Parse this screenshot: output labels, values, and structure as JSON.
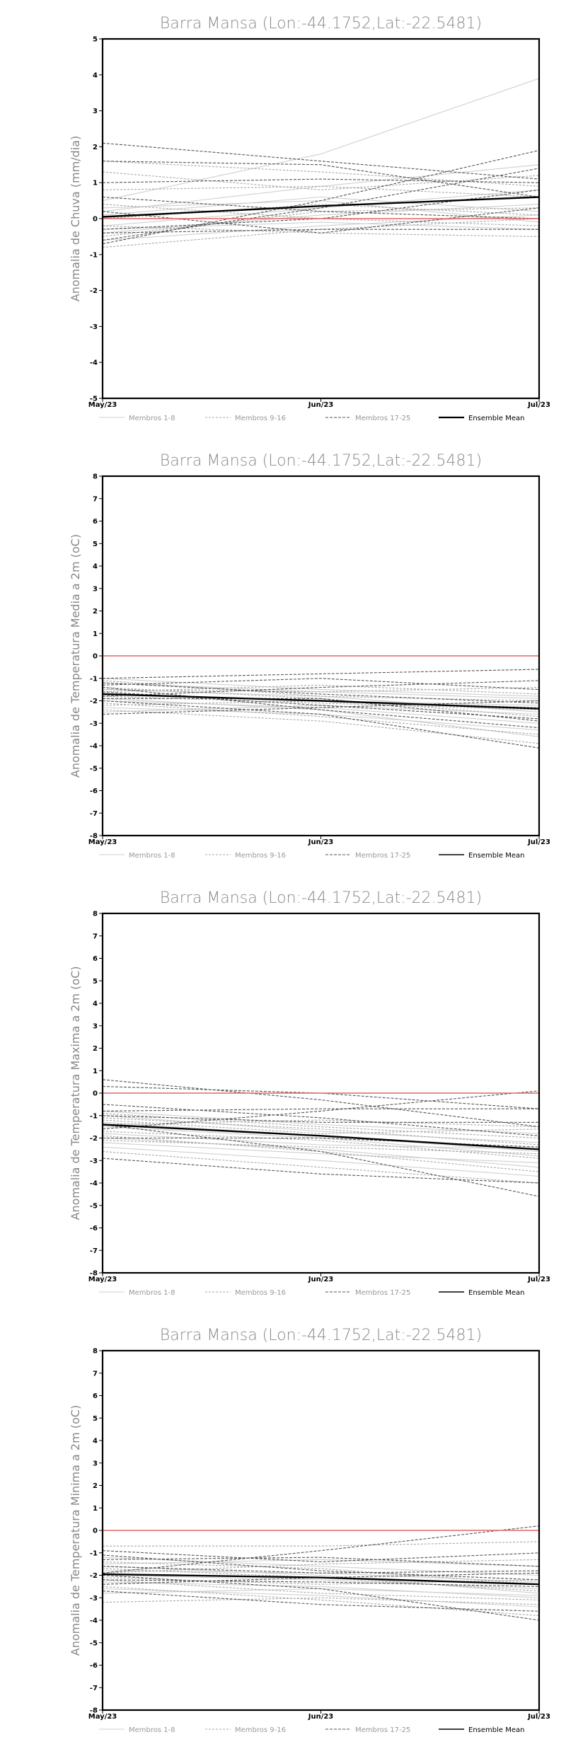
{
  "chart_data": [
    {
      "type": "line",
      "title": "Barra Mansa (Lon:-44.1752,Lat:-22.5481)",
      "ylabel": "Anomalia de Chuva (mm/dia)",
      "xlabel": "",
      "categories": [
        "May/23",
        "Jun/23",
        "Jul/23"
      ],
      "ylim": [
        -5,
        5
      ],
      "yticks": [
        -5,
        -4,
        -3,
        -2,
        -1,
        0,
        1,
        2,
        3,
        4,
        5
      ],
      "reference_line": {
        "y": 0,
        "color": "#e06666"
      },
      "legend": [
        "Membros 1-8",
        "Membros 9-16",
        "Membros 17-25",
        "Ensemble Mean"
      ],
      "series": [
        {
          "group": "g1",
          "values": [
            0.5,
            1.8,
            3.9
          ]
        },
        {
          "group": "g1",
          "values": [
            0.2,
            0.9,
            1.5
          ]
        },
        {
          "group": "g1",
          "values": [
            -0.2,
            0.3,
            0.8
          ]
        },
        {
          "group": "g1",
          "values": [
            -0.4,
            0.1,
            0.4
          ]
        },
        {
          "group": "g1",
          "values": [
            0.1,
            0.6,
            0.2
          ]
        },
        {
          "group": "g1",
          "values": [
            -0.6,
            -0.2,
            0.1
          ]
        },
        {
          "group": "g1",
          "values": [
            0.3,
            0.5,
            -0.1
          ]
        },
        {
          "group": "g1",
          "values": [
            -0.3,
            -0.1,
            -0.3
          ]
        },
        {
          "group": "g2",
          "values": [
            1.6,
            1.3,
            0.9
          ]
        },
        {
          "group": "g2",
          "values": [
            0.8,
            0.9,
            0.6
          ]
        },
        {
          "group": "g2",
          "values": [
            -0.5,
            0.2,
            0.3
          ]
        },
        {
          "group": "g2",
          "values": [
            0.0,
            0.4,
            0.1
          ]
        },
        {
          "group": "g2",
          "values": [
            -0.8,
            -0.3,
            0.0
          ]
        },
        {
          "group": "g2",
          "values": [
            0.4,
            0.0,
            -0.2
          ]
        },
        {
          "group": "g2",
          "values": [
            -0.2,
            -0.4,
            -0.5
          ]
        },
        {
          "group": "g2",
          "values": [
            1.3,
            0.8,
            1.2
          ]
        },
        {
          "group": "g3",
          "values": [
            2.1,
            1.6,
            1.1
          ]
        },
        {
          "group": "g3",
          "values": [
            1.6,
            1.5,
            0.6
          ]
        },
        {
          "group": "g3",
          "values": [
            -0.7,
            0.5,
            1.9
          ]
        },
        {
          "group": "g3",
          "values": [
            -0.6,
            0.3,
            1.4
          ]
        },
        {
          "group": "g3",
          "values": [
            0.2,
            -0.4,
            0.3
          ]
        },
        {
          "group": "g3",
          "values": [
            -0.4,
            -0.3,
            -0.3
          ]
        },
        {
          "group": "g3",
          "values": [
            0.6,
            0.2,
            0.0
          ]
        },
        {
          "group": "g3",
          "values": [
            -0.3,
            0.0,
            0.8
          ]
        },
        {
          "group": "g3",
          "values": [
            1.0,
            1.1,
            1.0
          ]
        },
        {
          "group": "mean",
          "values": [
            0.05,
            0.35,
            0.6
          ]
        }
      ]
    },
    {
      "type": "line",
      "title": "Barra Mansa (Lon:-44.1752,Lat:-22.5481)",
      "ylabel": "Anomalia de Temperatura Media a 2m (oC)",
      "xlabel": "",
      "categories": [
        "May/23",
        "Jun/23",
        "Jul/23"
      ],
      "ylim": [
        -8,
        8
      ],
      "yticks": [
        -8,
        -7,
        -6,
        -5,
        -4,
        -3,
        -2,
        -1,
        0,
        1,
        2,
        3,
        4,
        5,
        6,
        7,
        8
      ],
      "reference_line": {
        "y": 0,
        "color": "#e06666"
      },
      "legend": [
        "Membros 1-8",
        "Membros 9-16",
        "Membros 17-25",
        "Ensemble Mean"
      ],
      "series": [
        {
          "group": "g1",
          "values": [
            -1.5,
            -1.8,
            -2.5
          ]
        },
        {
          "group": "g1",
          "values": [
            -2.0,
            -2.3,
            -3.0
          ]
        },
        {
          "group": "g1",
          "values": [
            -1.2,
            -1.6,
            -1.9
          ]
        },
        {
          "group": "g1",
          "values": [
            -2.3,
            -2.6,
            -3.3
          ]
        },
        {
          "group": "g1",
          "values": [
            -1.7,
            -2.0,
            -2.2
          ]
        },
        {
          "group": "g1",
          "values": [
            -1.0,
            -1.5,
            -1.8
          ]
        },
        {
          "group": "g1",
          "values": [
            -2.5,
            -2.2,
            -2.6
          ]
        },
        {
          "group": "g1",
          "values": [
            -1.9,
            -2.4,
            -3.6
          ]
        },
        {
          "group": "g2",
          "values": [
            -1.4,
            -1.9,
            -2.7
          ]
        },
        {
          "group": "g2",
          "values": [
            -2.1,
            -2.7,
            -3.5
          ]
        },
        {
          "group": "g2",
          "values": [
            -1.6,
            -1.3,
            -1.7
          ]
        },
        {
          "group": "g2",
          "values": [
            -1.8,
            -2.1,
            -2.4
          ]
        },
        {
          "group": "g2",
          "values": [
            -2.4,
            -2.9,
            -3.9
          ]
        },
        {
          "group": "g2",
          "values": [
            -1.1,
            -1.8,
            -2.0
          ]
        },
        {
          "group": "g2",
          "values": [
            -2.2,
            -2.0,
            -2.3
          ]
        },
        {
          "group": "g2",
          "values": [
            -1.5,
            -1.6,
            -1.4
          ]
        },
        {
          "group": "g3",
          "values": [
            -1.0,
            -0.8,
            -0.6
          ]
        },
        {
          "group": "g3",
          "values": [
            -1.3,
            -1.0,
            -1.5
          ]
        },
        {
          "group": "g3",
          "values": [
            -1.6,
            -2.2,
            -2.8
          ]
        },
        {
          "group": "g3",
          "values": [
            -2.0,
            -2.6,
            -4.1
          ]
        },
        {
          "group": "g3",
          "values": [
            -1.8,
            -1.4,
            -1.1
          ]
        },
        {
          "group": "g3",
          "values": [
            -2.6,
            -2.3,
            -2.0
          ]
        },
        {
          "group": "g3",
          "values": [
            -1.2,
            -1.7,
            -2.1
          ]
        },
        {
          "group": "g3",
          "values": [
            -1.9,
            -1.9,
            -2.9
          ]
        },
        {
          "group": "g3",
          "values": [
            -1.4,
            -2.4,
            -3.2
          ]
        },
        {
          "group": "mean",
          "values": [
            -1.7,
            -2.0,
            -2.35
          ]
        }
      ]
    },
    {
      "type": "line",
      "title": "Barra Mansa (Lon:-44.1752,Lat:-22.5481)",
      "ylabel": "Anomalia de Temperatura Maxima a 2m (oC)",
      "xlabel": "",
      "categories": [
        "May/23",
        "Jun/23",
        "Jul/23"
      ],
      "ylim": [
        -8,
        8
      ],
      "yticks": [
        -8,
        -7,
        -6,
        -5,
        -4,
        -3,
        -2,
        -1,
        0,
        1,
        2,
        3,
        4,
        5,
        6,
        7,
        8
      ],
      "reference_line": {
        "y": 0,
        "color": "#e06666"
      },
      "legend": [
        "Membros 1-8",
        "Membros 9-16",
        "Membros 17-25",
        "Ensemble Mean"
      ],
      "series": [
        {
          "group": "g1",
          "values": [
            -1.5,
            -2.0,
            -2.8
          ]
        },
        {
          "group": "g1",
          "values": [
            -2.0,
            -2.5,
            -3.3
          ]
        },
        {
          "group": "g1",
          "values": [
            -1.0,
            -1.7,
            -2.2
          ]
        },
        {
          "group": "g1",
          "values": [
            -2.4,
            -3.0,
            -3.7
          ]
        },
        {
          "group": "g1",
          "values": [
            -1.8,
            -2.3,
            -2.5
          ]
        },
        {
          "group": "g1",
          "values": [
            -0.8,
            -1.4,
            -1.8
          ]
        },
        {
          "group": "g1",
          "values": [
            -2.2,
            -2.7,
            -3.1
          ]
        },
        {
          "group": "g1",
          "values": [
            -1.3,
            -1.9,
            -2.6
          ]
        },
        {
          "group": "g2",
          "values": [
            -1.1,
            -1.6,
            -2.3
          ]
        },
        {
          "group": "g2",
          "values": [
            -1.9,
            -2.6,
            -3.5
          ]
        },
        {
          "group": "g2",
          "values": [
            -1.4,
            -1.2,
            -1.5
          ]
        },
        {
          "group": "g2",
          "values": [
            -2.6,
            -3.3,
            -4.0
          ]
        },
        {
          "group": "g2",
          "values": [
            -0.9,
            -1.5,
            -2.0
          ]
        },
        {
          "group": "g2",
          "values": [
            -1.7,
            -2.1,
            -2.9
          ]
        },
        {
          "group": "g2",
          "values": [
            -2.1,
            -2.4,
            -2.7
          ]
        },
        {
          "group": "g2",
          "values": [
            -1.2,
            -1.8,
            -1.6
          ]
        },
        {
          "group": "g3",
          "values": [
            0.6,
            -0.3,
            -1.5
          ]
        },
        {
          "group": "g3",
          "values": [
            0.3,
            0.0,
            -0.7
          ]
        },
        {
          "group": "g3",
          "values": [
            -2.9,
            -3.6,
            -4.0
          ]
        },
        {
          "group": "g3",
          "values": [
            -1.6,
            -0.8,
            0.1
          ]
        },
        {
          "group": "g3",
          "values": [
            -0.8,
            -0.7,
            -0.7
          ]
        },
        {
          "group": "g3",
          "values": [
            -1.4,
            -2.6,
            -4.6
          ]
        },
        {
          "group": "g3",
          "values": [
            -1.0,
            -1.3,
            -1.3
          ]
        },
        {
          "group": "g3",
          "values": [
            -2.0,
            -2.0,
            -2.4
          ]
        },
        {
          "group": "g3",
          "values": [
            -0.5,
            -1.1,
            -1.9
          ]
        },
        {
          "group": "mean",
          "values": [
            -1.4,
            -1.9,
            -2.5
          ]
        }
      ]
    },
    {
      "type": "line",
      "title": "Barra Mansa (Lon:-44.1752,Lat:-22.5481)",
      "ylabel": "Anomalia de Temperatura Minima a 2m (oC)",
      "xlabel": "",
      "categories": [
        "May/23",
        "Jun/23",
        "Jul/23"
      ],
      "ylim": [
        -8,
        8
      ],
      "yticks": [
        -8,
        -7,
        -6,
        -5,
        -4,
        -3,
        -2,
        -1,
        0,
        1,
        2,
        3,
        4,
        5,
        6,
        7,
        8
      ],
      "reference_line": {
        "y": 0,
        "color": "#e06666"
      },
      "legend": [
        "Membros 1-8",
        "Membros 9-16",
        "Membros 17-25",
        "Ensemble Mean"
      ],
      "series": [
        {
          "group": "g1",
          "values": [
            -1.8,
            -1.9,
            -2.3
          ]
        },
        {
          "group": "g1",
          "values": [
            -2.3,
            -2.5,
            -3.0
          ]
        },
        {
          "group": "g1",
          "values": [
            -1.5,
            -1.3,
            -1.6
          ]
        },
        {
          "group": "g1",
          "values": [
            -2.6,
            -2.9,
            -3.4
          ]
        },
        {
          "group": "g1",
          "values": [
            -2.0,
            -2.2,
            -2.6
          ]
        },
        {
          "group": "g1",
          "values": [
            -1.2,
            -1.6,
            -2.0
          ]
        },
        {
          "group": "g1",
          "values": [
            -2.8,
            -2.6,
            -2.9
          ]
        },
        {
          "group": "g1",
          "values": [
            -1.6,
            -2.0,
            -2.8
          ]
        },
        {
          "group": "g2",
          "values": [
            -2.1,
            -2.4,
            -2.2
          ]
        },
        {
          "group": "g2",
          "values": [
            -1.4,
            -1.7,
            -2.4
          ]
        },
        {
          "group": "g2",
          "values": [
            -2.5,
            -3.1,
            -3.8
          ]
        },
        {
          "group": "g2",
          "values": [
            -1.9,
            -1.5,
            -1.3
          ]
        },
        {
          "group": "g2",
          "values": [
            -0.7,
            -0.7,
            -0.5
          ]
        },
        {
          "group": "g2",
          "values": [
            -3.2,
            -3.0,
            -3.3
          ]
        },
        {
          "group": "g2",
          "values": [
            -2.2,
            -2.8,
            -3.1
          ]
        },
        {
          "group": "g2",
          "values": [
            -1.7,
            -2.1,
            -2.7
          ]
        },
        {
          "group": "g3",
          "values": [
            -1.9,
            -0.9,
            0.2
          ]
        },
        {
          "group": "g3",
          "values": [
            -0.9,
            -1.4,
            -1.0
          ]
        },
        {
          "group": "g3",
          "values": [
            -2.4,
            -2.1,
            -1.9
          ]
        },
        {
          "group": "g3",
          "values": [
            -2.0,
            -2.6,
            -4.0
          ]
        },
        {
          "group": "g3",
          "values": [
            -1.3,
            -1.2,
            -1.6
          ]
        },
        {
          "group": "g3",
          "values": [
            -2.7,
            -3.3,
            -3.6
          ]
        },
        {
          "group": "g3",
          "values": [
            -1.6,
            -1.9,
            -1.8
          ]
        },
        {
          "group": "g3",
          "values": [
            -2.2,
            -2.3,
            -2.5
          ]
        },
        {
          "group": "g3",
          "values": [
            -1.1,
            -1.8,
            -2.2
          ]
        },
        {
          "group": "mean",
          "values": [
            -1.95,
            -2.1,
            -2.4
          ]
        }
      ]
    }
  ]
}
